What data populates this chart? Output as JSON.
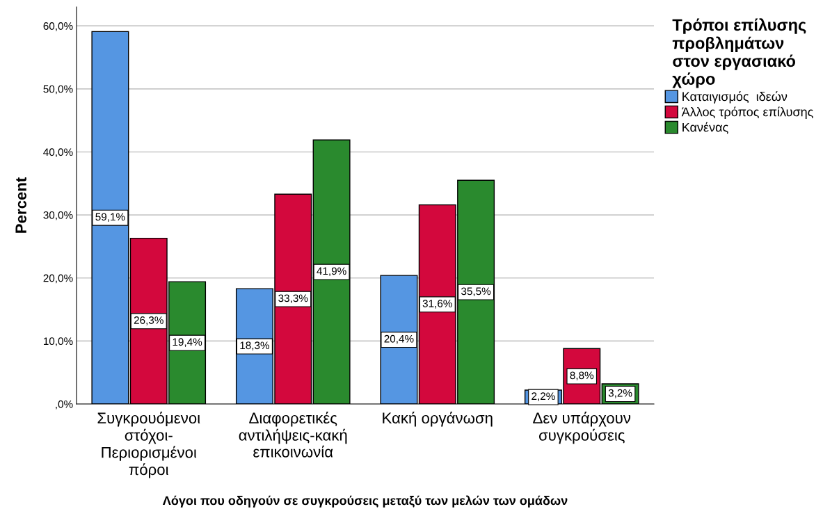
{
  "chart_data": {
    "type": "bar",
    "xlabel": "Λόγοι που οδηγούν σε συγκρούσεις μεταξύ των μελών των ομάδων",
    "ylabel": "Percent",
    "legend_title": "Τρόποι επίλυσης\nπροβλημάτων\nστον εργασιακό\nχώρο",
    "categories": [
      "Συγκρουόμενοι\nστόχοι-\nΠεριορισμένοι\nπόροι",
      "Διαφορετικές\nαντιλήψεις-κακή\nεπικοινωνία",
      "Κακή οργάνωση",
      "Δεν υπάρχουν\nσυγκρούσεις"
    ],
    "series": [
      {
        "name": "Καταιγισμός  ιδεών",
        "color": "#5596e2",
        "values": [
          59.1,
          18.3,
          20.4,
          2.2
        ],
        "value_labels": [
          "59,1%",
          "18,3%",
          "20,4%",
          "2,2%"
        ]
      },
      {
        "name": "Άλλος τρόπος επίλυσης",
        "color": "#d3083d",
        "values": [
          26.3,
          33.3,
          31.6,
          8.8
        ],
        "value_labels": [
          "26,3%",
          "33,3%",
          "31,6%",
          "8,8%"
        ]
      },
      {
        "name": "Κανένας",
        "color": "#2a8a2e",
        "values": [
          19.4,
          41.9,
          35.5,
          3.2
        ],
        "value_labels": [
          "19,4%",
          "41,9%",
          "35,5%",
          "3,2%"
        ]
      }
    ],
    "ylim": [
      0,
      63
    ],
    "yticks": [
      {
        "value": 0,
        "label": ",0%"
      },
      {
        "value": 10,
        "label": "10,0%"
      },
      {
        "value": 20,
        "label": "20,0%"
      },
      {
        "value": 30,
        "label": "30,0%"
      },
      {
        "value": 40,
        "label": "40,0%"
      },
      {
        "value": 50,
        "label": "50,0%"
      },
      {
        "value": 60,
        "label": "60,0%"
      }
    ],
    "grid": "y",
    "legend": "top right"
  }
}
